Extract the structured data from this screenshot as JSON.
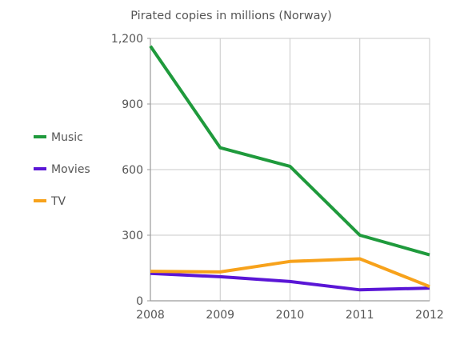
{
  "chart_data": {
    "type": "line",
    "title": "Pirated copies in millions (Norway)",
    "xlabel": "",
    "ylabel": "",
    "x": [
      "2008",
      "2009",
      "2010",
      "2011",
      "2012"
    ],
    "y_ticks": [
      "0",
      "300",
      "600",
      "900",
      "1,200"
    ],
    "ylim": [
      0,
      1200
    ],
    "grid": true,
    "legend_position": "left",
    "series": [
      {
        "name": "Music",
        "color": "#1f9a3c",
        "values": [
          1165,
          700,
          615,
          300,
          210
        ]
      },
      {
        "name": "Movies",
        "color": "#5a16d6",
        "values": [
          125,
          110,
          88,
          50,
          58
        ]
      },
      {
        "name": "TV",
        "color": "#f7a21b",
        "values": [
          135,
          132,
          180,
          192,
          65
        ]
      }
    ]
  }
}
